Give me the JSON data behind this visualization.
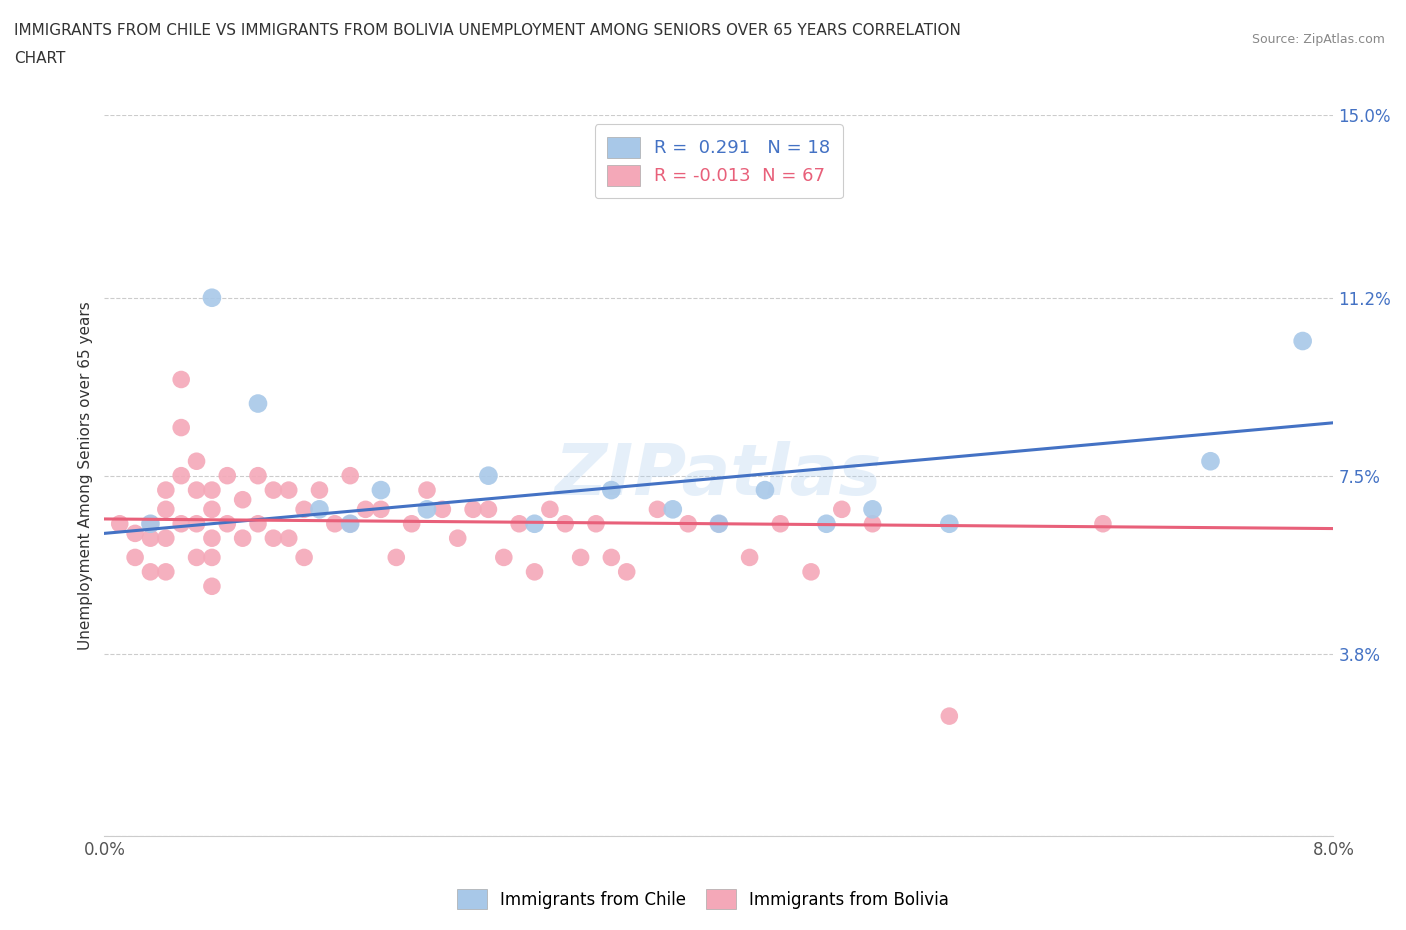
{
  "title_line1": "IMMIGRANTS FROM CHILE VS IMMIGRANTS FROM BOLIVIA UNEMPLOYMENT AMONG SENIORS OVER 65 YEARS CORRELATION",
  "title_line2": "CHART",
  "source": "Source: ZipAtlas.com",
  "ylabel": "Unemployment Among Seniors over 65 years",
  "xlim": [
    0.0,
    0.08
  ],
  "ylim": [
    0.0,
    0.15
  ],
  "ytick_vals": [
    0.0,
    0.038,
    0.075,
    0.112,
    0.15
  ],
  "ytick_labels": [
    "",
    "3.8%",
    "7.5%",
    "11.2%",
    "15.0%"
  ],
  "xtick_vals": [
    0.0,
    0.016,
    0.032,
    0.048,
    0.064,
    0.08
  ],
  "xtick_labels": [
    "0.0%",
    "",
    "",
    "",
    "",
    "8.0%"
  ],
  "chile_R": 0.291,
  "chile_N": 18,
  "bolivia_R": -0.013,
  "bolivia_N": 67,
  "chile_color": "#a8c8e8",
  "bolivia_color": "#f4a8b8",
  "chile_line_color": "#4472c4",
  "bolivia_line_color": "#e8607a",
  "background_color": "#ffffff",
  "watermark": "ZIPatlas",
  "chile_x": [
    0.003,
    0.007,
    0.01,
    0.014,
    0.016,
    0.018,
    0.021,
    0.025,
    0.028,
    0.033,
    0.037,
    0.04,
    0.043,
    0.047,
    0.05,
    0.055,
    0.072,
    0.078
  ],
  "chile_y": [
    0.065,
    0.112,
    0.09,
    0.068,
    0.065,
    0.072,
    0.068,
    0.075,
    0.065,
    0.072,
    0.068,
    0.065,
    0.072,
    0.065,
    0.068,
    0.065,
    0.078,
    0.103
  ],
  "bolivia_x": [
    0.001,
    0.002,
    0.002,
    0.003,
    0.003,
    0.003,
    0.004,
    0.004,
    0.004,
    0.004,
    0.005,
    0.005,
    0.005,
    0.005,
    0.006,
    0.006,
    0.006,
    0.006,
    0.007,
    0.007,
    0.007,
    0.007,
    0.007,
    0.008,
    0.008,
    0.009,
    0.009,
    0.01,
    0.01,
    0.011,
    0.011,
    0.012,
    0.012,
    0.013,
    0.013,
    0.014,
    0.015,
    0.016,
    0.016,
    0.017,
    0.018,
    0.019,
    0.02,
    0.021,
    0.022,
    0.023,
    0.024,
    0.025,
    0.026,
    0.027,
    0.028,
    0.029,
    0.03,
    0.031,
    0.032,
    0.033,
    0.034,
    0.036,
    0.038,
    0.04,
    0.042,
    0.044,
    0.046,
    0.048,
    0.05,
    0.055,
    0.065
  ],
  "bolivia_y": [
    0.065,
    0.063,
    0.058,
    0.065,
    0.062,
    0.055,
    0.072,
    0.068,
    0.062,
    0.055,
    0.095,
    0.085,
    0.075,
    0.065,
    0.078,
    0.072,
    0.065,
    0.058,
    0.072,
    0.068,
    0.062,
    0.058,
    0.052,
    0.075,
    0.065,
    0.07,
    0.062,
    0.075,
    0.065,
    0.072,
    0.062,
    0.072,
    0.062,
    0.068,
    0.058,
    0.072,
    0.065,
    0.075,
    0.065,
    0.068,
    0.068,
    0.058,
    0.065,
    0.072,
    0.068,
    0.062,
    0.068,
    0.068,
    0.058,
    0.065,
    0.055,
    0.068,
    0.065,
    0.058,
    0.065,
    0.058,
    0.055,
    0.068,
    0.065,
    0.065,
    0.058,
    0.065,
    0.055,
    0.068,
    0.065,
    0.025,
    0.065
  ]
}
